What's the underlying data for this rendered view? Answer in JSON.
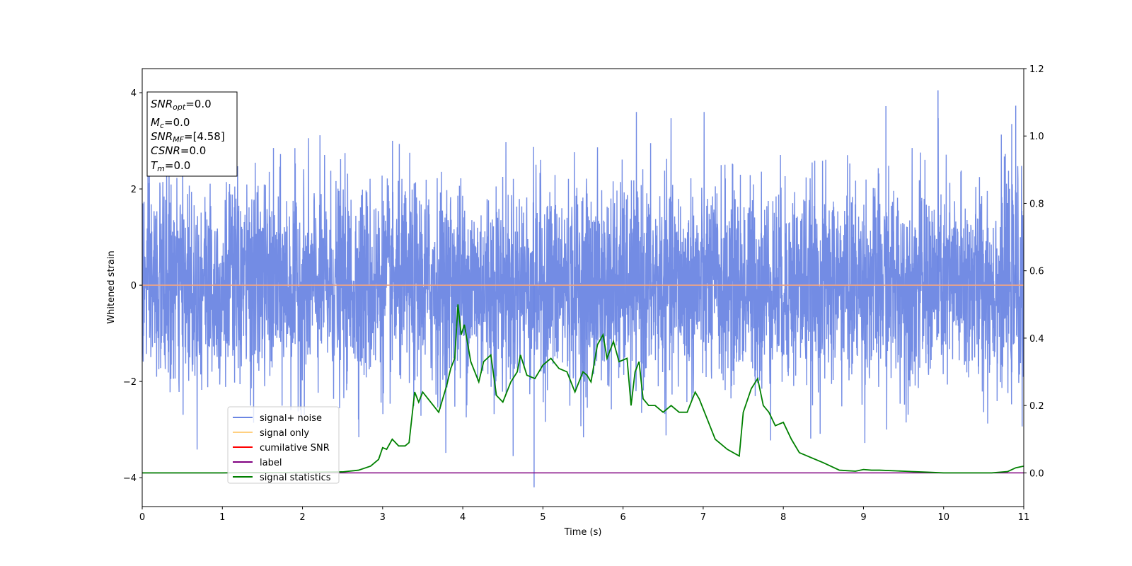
{
  "chart_data": {
    "type": "line",
    "xlabel": "Time (s)",
    "ylabel": "Whitened strain",
    "xlim": [
      0,
      11
    ],
    "ylim": [
      -4.6,
      4.5
    ],
    "y2lim": [
      -0.1,
      1.2
    ],
    "x_ticks": [
      "0",
      "1",
      "2",
      "3",
      "4",
      "5",
      "6",
      "7",
      "8",
      "9",
      "10",
      "11"
    ],
    "y_ticks": [
      "−4",
      "−2",
      "0",
      "2",
      "4"
    ],
    "y2_ticks": [
      "0.0",
      "0.2",
      "0.4",
      "0.6",
      "0.8",
      "1.0",
      "1.2"
    ],
    "info_box": [
      {
        "var": "SNR",
        "sub": "opt",
        "value": "=0.0"
      },
      {
        "var": "M",
        "sub": "c",
        "value": "=0.0"
      },
      {
        "var": "SNR",
        "sub": "MF",
        "value": "=[4.58]"
      },
      {
        "var": "CSNR",
        "sub": "",
        "value": "=0.0"
      },
      {
        "var": "T",
        "sub": "m",
        "value": "=0.0"
      }
    ],
    "legend_position": "lower-left",
    "legend": [
      {
        "label": "signal+ noise",
        "color": "#6b86e3"
      },
      {
        "label": "signal only",
        "color": "#ffd080"
      },
      {
        "label": "cumilative SNR",
        "color": "#ff0000"
      },
      {
        "label": "label",
        "color": "#800080"
      },
      {
        "label": "signal statistics",
        "color": "#008000"
      }
    ],
    "series": [
      {
        "name": "signal+ noise",
        "axis": "left",
        "color": "#6b86e3",
        "description_range": [
          -4.2,
          4.05
        ],
        "notable_peaks": [
          [
            9.93,
            4.05
          ],
          [
            4.89,
            -4.2
          ],
          [
            9.28,
            3.72
          ],
          [
            10.9,
            3.73
          ]
        ]
      },
      {
        "name": "signal only",
        "axis": "left",
        "color": "#f4a582",
        "x": [
          0,
          11
        ],
        "y": [
          0,
          0
        ]
      },
      {
        "name": "label",
        "axis": "right",
        "color": "#800080",
        "x": [
          0,
          11
        ],
        "y": [
          0.0,
          0.0
        ]
      },
      {
        "name": "signal statistics",
        "axis": "right",
        "color": "#008000",
        "x": [
          0.0,
          0.3,
          0.6,
          1.0,
          1.4,
          1.8,
          2.2,
          2.5,
          2.7,
          2.85,
          2.95,
          3.0,
          3.05,
          3.12,
          3.2,
          3.28,
          3.33,
          3.4,
          3.45,
          3.5,
          3.6,
          3.7,
          3.8,
          3.85,
          3.9,
          3.94,
          3.98,
          4.02,
          4.1,
          4.2,
          4.26,
          4.35,
          4.42,
          4.5,
          4.6,
          4.68,
          4.72,
          4.8,
          4.9,
          5.0,
          5.1,
          5.2,
          5.3,
          5.4,
          5.5,
          5.55,
          5.6,
          5.68,
          5.75,
          5.8,
          5.88,
          5.95,
          6.05,
          6.1,
          6.15,
          6.2,
          6.25,
          6.32,
          6.4,
          6.5,
          6.6,
          6.7,
          6.8,
          6.9,
          6.95,
          7.05,
          7.15,
          7.3,
          7.45,
          7.5,
          7.6,
          7.68,
          7.75,
          7.82,
          7.9,
          8.0,
          8.1,
          8.2,
          8.3,
          8.5,
          8.7,
          8.9,
          9.0,
          9.1,
          9.2,
          9.4,
          9.6,
          9.8,
          10.0,
          10.2,
          10.4,
          10.6,
          10.8,
          10.9,
          11.0
        ],
        "y": [
          0.0,
          0.0,
          0.0,
          0.0,
          0.001,
          0.001,
          0.002,
          0.003,
          0.008,
          0.02,
          0.04,
          0.075,
          0.07,
          0.1,
          0.08,
          0.08,
          0.09,
          0.24,
          0.21,
          0.24,
          0.21,
          0.18,
          0.26,
          0.31,
          0.34,
          0.5,
          0.41,
          0.44,
          0.33,
          0.27,
          0.33,
          0.35,
          0.23,
          0.21,
          0.27,
          0.3,
          0.35,
          0.29,
          0.28,
          0.32,
          0.34,
          0.31,
          0.3,
          0.24,
          0.3,
          0.29,
          0.27,
          0.38,
          0.41,
          0.34,
          0.39,
          0.33,
          0.34,
          0.2,
          0.3,
          0.33,
          0.22,
          0.2,
          0.2,
          0.18,
          0.2,
          0.18,
          0.18,
          0.24,
          0.22,
          0.16,
          0.1,
          0.07,
          0.05,
          0.18,
          0.25,
          0.28,
          0.2,
          0.18,
          0.14,
          0.15,
          0.1,
          0.06,
          0.05,
          0.03,
          0.008,
          0.005,
          0.01,
          0.008,
          0.008,
          0.006,
          0.004,
          0.002,
          0.0,
          0.0,
          0.0,
          0.0,
          0.004,
          0.015,
          0.02
        ]
      }
    ]
  }
}
